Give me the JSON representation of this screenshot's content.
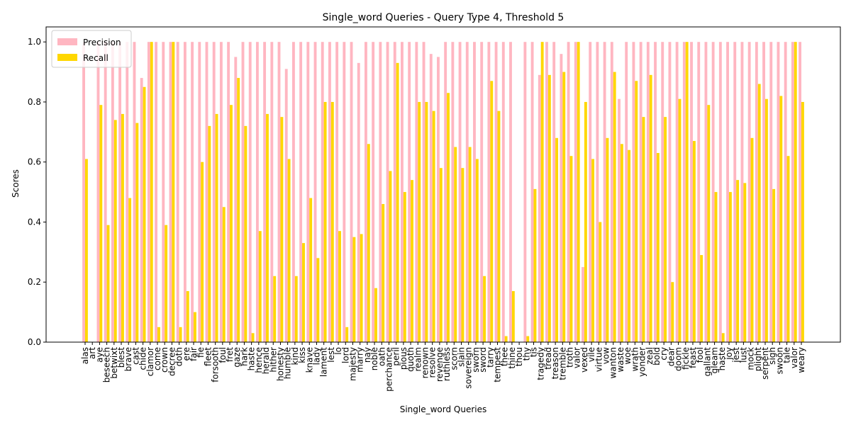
{
  "chart_data": {
    "type": "bar",
    "title": "Single_word Queries - Query Type 4, Threshold 5",
    "x_label": "Single_word Queries",
    "y_label": "Scores",
    "categories": [
      "alas",
      "art",
      "aye",
      "beseech",
      "betwixt",
      "blest",
      "brave",
      "cast",
      "chide",
      "clamor",
      "come",
      "crown",
      "decree",
      "doth",
      "ere",
      "fair",
      "fie",
      "fleet",
      "forsooth",
      "foul",
      "fret",
      "gaze",
      "hark",
      "haste",
      "hence",
      "herald",
      "hither",
      "honesty",
      "humble",
      "kind",
      "kiss",
      "knave",
      "lady",
      "lament",
      "lest",
      "lo",
      "lord",
      "majesty",
      "marry",
      "nay",
      "noble",
      "oath",
      "perchance",
      "peril",
      "pious",
      "quoth",
      "realm",
      "renown",
      "resolve",
      "revenge",
      "ruthless",
      "scorn",
      "slain",
      "sovereign",
      "sworn",
      "sword",
      "tarry",
      "tempest",
      "thee",
      "thine",
      "thou",
      "thy",
      "tis",
      "tragedy",
      "tread",
      "treason",
      "tremble",
      "troth",
      "valor",
      "vexed",
      "vile",
      "virtue",
      "vow",
      "wanton",
      "waste",
      "woe",
      "wrath",
      "yonder",
      "zeal",
      "bold",
      "cry",
      "dear",
      "doom",
      "fickle",
      "feast",
      "fool",
      "gallant",
      "gleam",
      "haste",
      "joy",
      "jest",
      "lust",
      "mock",
      "plight",
      "serpent",
      "sigh",
      "swoon",
      "tale",
      "valor",
      "weary"
    ],
    "series": [
      {
        "name": "Precision",
        "color": "#ffb6c1",
        "values": [
          1,
          0,
          1,
          1,
          1,
          1,
          1,
          1,
          0.88,
          1,
          1,
          1,
          1,
          1,
          1,
          1,
          1,
          1,
          1,
          1,
          1,
          0.95,
          1,
          1,
          1,
          1,
          1,
          1,
          0.91,
          1,
          1,
          1,
          1,
          1,
          1,
          1,
          1,
          1,
          0.93,
          1,
          1,
          1,
          1,
          1,
          1,
          1,
          1,
          1,
          0.96,
          0.95,
          1,
          1,
          1,
          1,
          1,
          1,
          1,
          1,
          1,
          1,
          0,
          1,
          1,
          0.89,
          1,
          1,
          0.96,
          1,
          1,
          0.25,
          1,
          1,
          1,
          1,
          0.81,
          1,
          1,
          1,
          1,
          1,
          1,
          1,
          1,
          1,
          1,
          1,
          1,
          1,
          1,
          1,
          1,
          1,
          1,
          1,
          1,
          1,
          1,
          1,
          1,
          1
        ]
      },
      {
        "name": "Recall",
        "color": "#ffd700",
        "values": [
          0.61,
          0,
          0.79,
          0.39,
          0.74,
          0.76,
          0.48,
          0.73,
          0.85,
          1,
          0.05,
          0.39,
          1,
          0.05,
          0.17,
          0.1,
          0.6,
          0.72,
          0.76,
          0.45,
          0.79,
          0.88,
          0.72,
          0.03,
          0.37,
          0.76,
          0.22,
          0.75,
          0.61,
          0.22,
          0.33,
          0.48,
          0.28,
          0.8,
          0.8,
          0.37,
          0.05,
          0.35,
          0.36,
          0.66,
          0.18,
          0.46,
          0.57,
          0.93,
          0.5,
          0.54,
          0.8,
          0.8,
          0.77,
          0.58,
          0.83,
          0.65,
          0.58,
          0.65,
          0.61,
          0.22,
          0.87,
          0.77,
          0.02,
          0.17,
          0,
          0.02,
          0.51,
          1,
          0.89,
          0.68,
          0.9,
          0.62,
          1,
          0.8,
          0.61,
          0.4,
          0.68,
          0.9,
          0.66,
          0.64,
          0.87,
          0.75,
          0.89,
          0.63,
          0.75,
          0.2,
          0.81,
          1,
          0.67,
          0.29,
          0.79,
          0.5,
          0.03,
          0.5,
          0.54,
          0.53,
          0.68,
          0.86,
          0.81,
          0.51,
          0.82,
          0.62,
          1,
          0.8
        ]
      }
    ],
    "ylim": [
      0,
      1.05
    ],
    "yticks": [
      {
        "value": 0,
        "label": "0.0"
      },
      0.2,
      0.4,
      0.6,
      0.8,
      {
        "value": 1,
        "label": "1.0"
      }
    ],
    "legend": "upper left"
  }
}
